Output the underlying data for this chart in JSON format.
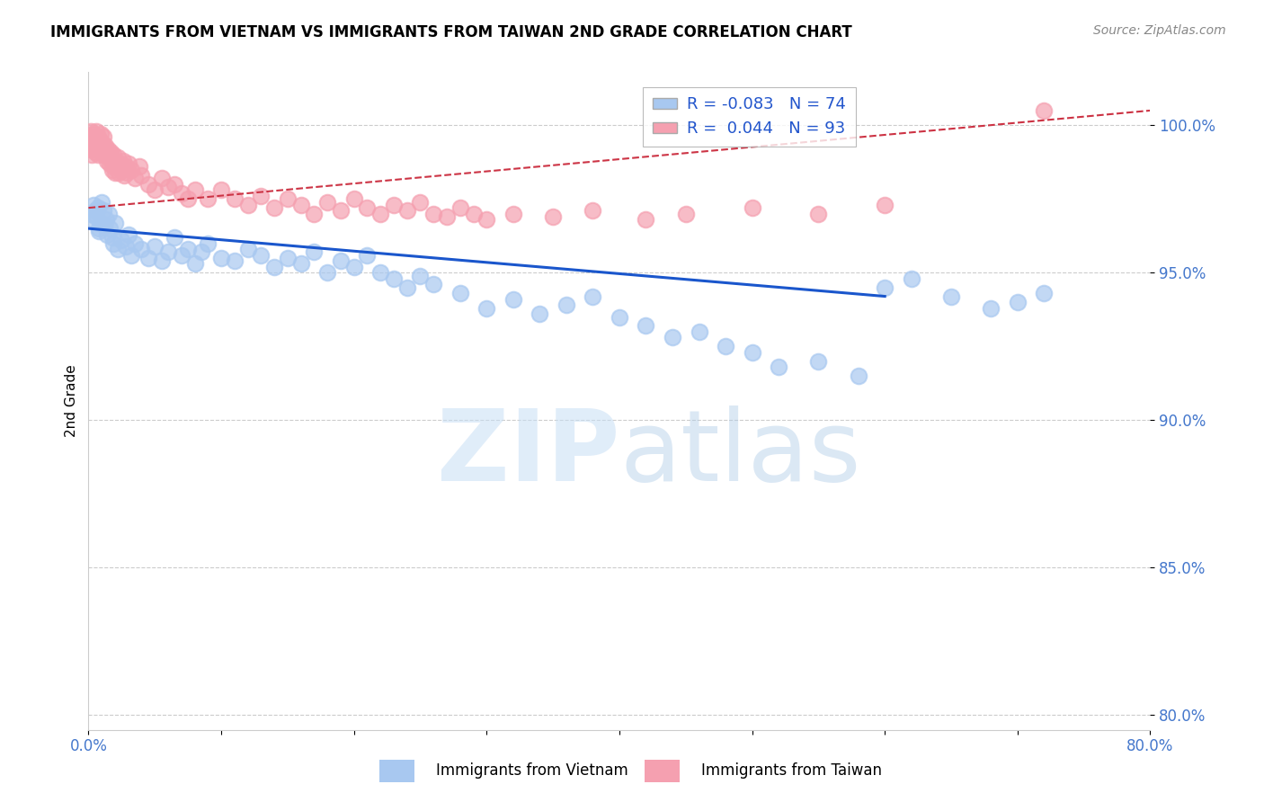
{
  "title": "IMMIGRANTS FROM VIETNAM VS IMMIGRANTS FROM TAIWAN 2ND GRADE CORRELATION CHART",
  "source": "Source: ZipAtlas.com",
  "ylabel": "2nd Grade",
  "xlim": [
    0.0,
    80.0
  ],
  "ylim": [
    79.5,
    101.8
  ],
  "yticks": [
    80.0,
    85.0,
    90.0,
    95.0,
    100.0
  ],
  "ytick_labels": [
    "80.0%",
    "85.0%",
    "90.0%",
    "95.0%",
    "100.0%"
  ],
  "xticks": [
    0.0,
    10.0,
    20.0,
    30.0,
    40.0,
    50.0,
    60.0,
    70.0,
    80.0
  ],
  "xtick_labels": [
    "0.0%",
    "",
    "",
    "",
    "",
    "",
    "",
    "",
    "80.0%"
  ],
  "vietnam_color": "#a8c8f0",
  "taiwan_color": "#f5a0b0",
  "trend_vietnam_color": "#1a56cc",
  "trend_taiwan_color": "#cc3344",
  "legend_R_vietnam": "-0.083",
  "legend_N_vietnam": "74",
  "legend_R_taiwan": "0.044",
  "legend_N_taiwan": "93",
  "watermark": "ZIPatlas",
  "vietnam_x": [
    0.3,
    0.5,
    0.8,
    0.4,
    0.6,
    0.2,
    0.7,
    0.9,
    1.0,
    1.2,
    1.1,
    0.8,
    1.3,
    1.5,
    1.4,
    1.6,
    1.8,
    2.0,
    1.9,
    2.2,
    2.5,
    2.8,
    3.0,
    3.2,
    3.5,
    4.0,
    4.5,
    5.0,
    5.5,
    6.0,
    6.5,
    7.0,
    7.5,
    8.0,
    8.5,
    9.0,
    10.0,
    11.0,
    12.0,
    13.0,
    14.0,
    15.0,
    16.0,
    17.0,
    18.0,
    19.0,
    20.0,
    21.0,
    22.0,
    23.0,
    24.0,
    25.0,
    26.0,
    28.0,
    30.0,
    32.0,
    34.0,
    36.0,
    38.0,
    40.0,
    42.0,
    44.0,
    46.0,
    48.0,
    50.0,
    52.0,
    55.0,
    58.0,
    60.0,
    62.0,
    65.0,
    68.0,
    70.0,
    72.0
  ],
  "vietnam_y": [
    96.8,
    97.1,
    96.5,
    97.3,
    96.9,
    97.0,
    97.2,
    96.7,
    97.4,
    96.6,
    97.1,
    96.4,
    96.8,
    97.0,
    96.3,
    96.5,
    96.2,
    96.7,
    96.0,
    95.8,
    96.1,
    95.9,
    96.3,
    95.6,
    96.0,
    95.8,
    95.5,
    95.9,
    95.4,
    95.7,
    96.2,
    95.6,
    95.8,
    95.3,
    95.7,
    96.0,
    95.5,
    95.4,
    95.8,
    95.6,
    95.2,
    95.5,
    95.3,
    95.7,
    95.0,
    95.4,
    95.2,
    95.6,
    95.0,
    94.8,
    94.5,
    94.9,
    94.6,
    94.3,
    93.8,
    94.1,
    93.6,
    93.9,
    94.2,
    93.5,
    93.2,
    92.8,
    93.0,
    92.5,
    92.3,
    91.8,
    92.0,
    91.5,
    94.5,
    94.8,
    94.2,
    93.8,
    94.0,
    94.3
  ],
  "taiwan_x": [
    0.05,
    0.1,
    0.15,
    0.2,
    0.3,
    0.25,
    0.4,
    0.35,
    0.5,
    0.45,
    0.6,
    0.55,
    0.7,
    0.65,
    0.8,
    0.75,
    0.9,
    0.85,
    1.0,
    0.95,
    1.1,
    1.05,
    1.2,
    1.15,
    1.3,
    1.25,
    1.4,
    1.35,
    1.5,
    1.45,
    1.6,
    1.55,
    1.7,
    1.65,
    1.8,
    1.75,
    1.9,
    1.85,
    2.0,
    1.95,
    2.1,
    2.2,
    2.3,
    2.4,
    2.5,
    2.6,
    2.7,
    2.8,
    2.9,
    3.0,
    3.2,
    3.5,
    3.8,
    4.0,
    4.5,
    5.0,
    5.5,
    6.0,
    6.5,
    7.0,
    7.5,
    8.0,
    9.0,
    10.0,
    11.0,
    12.0,
    13.0,
    14.0,
    15.0,
    16.0,
    17.0,
    18.0,
    19.0,
    20.0,
    21.0,
    22.0,
    23.0,
    24.0,
    25.0,
    26.0,
    27.0,
    28.0,
    29.0,
    30.0,
    32.0,
    35.0,
    38.0,
    42.0,
    45.0,
    50.0,
    55.0,
    60.0,
    72.0
  ],
  "taiwan_y": [
    99.5,
    99.3,
    99.8,
    99.2,
    99.6,
    99.0,
    99.4,
    99.7,
    99.1,
    99.5,
    99.3,
    99.8,
    99.0,
    99.4,
    99.2,
    99.6,
    99.1,
    99.5,
    99.3,
    99.7,
    99.0,
    99.4,
    99.2,
    99.6,
    99.0,
    99.3,
    98.8,
    99.1,
    98.9,
    99.2,
    98.7,
    99.0,
    98.8,
    99.1,
    98.5,
    98.9,
    98.6,
    99.0,
    98.4,
    98.8,
    98.6,
    98.9,
    98.4,
    98.7,
    98.5,
    98.8,
    98.3,
    98.6,
    98.4,
    98.7,
    98.5,
    98.2,
    98.6,
    98.3,
    98.0,
    97.8,
    98.2,
    97.9,
    98.0,
    97.7,
    97.5,
    97.8,
    97.5,
    97.8,
    97.5,
    97.3,
    97.6,
    97.2,
    97.5,
    97.3,
    97.0,
    97.4,
    97.1,
    97.5,
    97.2,
    97.0,
    97.3,
    97.1,
    97.4,
    97.0,
    96.9,
    97.2,
    97.0,
    96.8,
    97.0,
    96.9,
    97.1,
    96.8,
    97.0,
    97.2,
    97.0,
    97.3,
    100.5
  ],
  "title_fontsize": 12,
  "tick_color": "#4477cc",
  "grid_color": "#cccccc",
  "grid_linestyle": "--"
}
